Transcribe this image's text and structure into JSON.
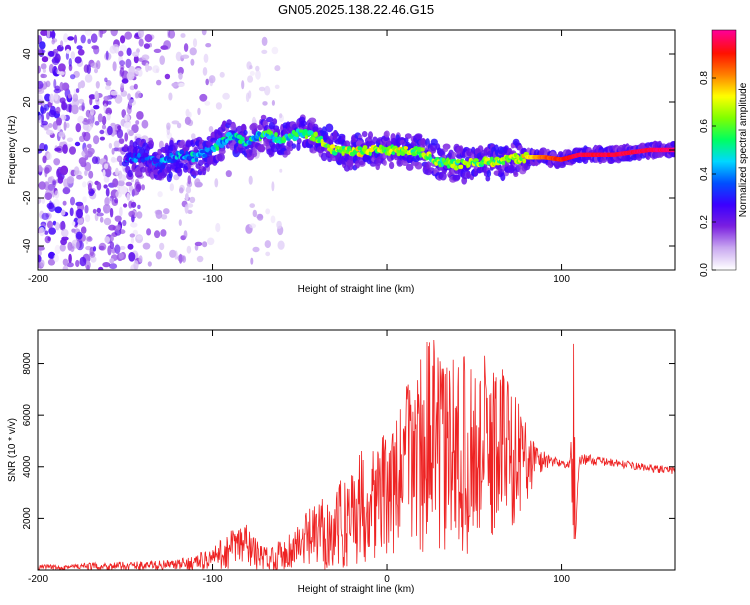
{
  "figure": {
    "title": "GN05.2025.138.22.46.G15"
  },
  "chart_data": [
    {
      "type": "heatmap",
      "title": "GN05.2025.138.22.46.G15",
      "xlabel": "Height of straight line (km)",
      "ylabel": "Frequency (Hz)",
      "xlim": [
        -200,
        165
      ],
      "ylim": [
        -50,
        50
      ],
      "x_ticks": [
        -200,
        -100,
        0,
        100
      ],
      "x_tick_labels": [
        "-200",
        "-100",
        "",
        "100"
      ],
      "y_ticks": [
        -40,
        -20,
        0,
        20,
        40
      ],
      "y_tick_labels": [
        "-40",
        "-20",
        "0",
        "20",
        "40"
      ],
      "colorbar": {
        "label": "Normalized spectral amplitude",
        "range": [
          0,
          1
        ],
        "ticks": [
          0,
          0.2,
          0.4,
          0.6,
          0.8
        ],
        "tick_labels": [
          "0.0",
          "0.2",
          "0.4",
          "0.6",
          "0.8"
        ],
        "colormap": [
          "#ffffff",
          "#c9a8f0",
          "#7a1fe0",
          "#3a00ff",
          "#0050ff",
          "#00d8ff",
          "#00ff60",
          "#80ff00",
          "#ffff00",
          "#ff8000",
          "#ff1000",
          "#ff0090"
        ]
      },
      "ridge": {
        "x": [
          -150,
          -140,
          -130,
          -120,
          -110,
          -100,
          -90,
          -80,
          -70,
          -60,
          -50,
          -40,
          -30,
          -20,
          -10,
          0,
          10,
          20,
          30,
          40,
          50,
          60,
          70,
          80,
          90,
          100,
          110,
          120,
          130,
          140,
          150,
          165
        ],
        "freq": [
          -4,
          -3,
          -6,
          -2,
          -3,
          0,
          6,
          3,
          7,
          4,
          7,
          5,
          0,
          -1,
          0,
          0,
          0,
          -1,
          -5,
          -6,
          -5,
          -5,
          -4,
          -3,
          -3,
          -4,
          -2,
          -2,
          -2,
          -1,
          0,
          0
        ],
        "amplitude": [
          0.3,
          0.32,
          0.35,
          0.38,
          0.4,
          0.45,
          0.48,
          0.45,
          0.5,
          0.5,
          0.55,
          0.6,
          0.62,
          0.65,
          0.68,
          0.62,
          0.65,
          0.6,
          0.6,
          0.58,
          0.62,
          0.62,
          0.65,
          0.72,
          0.85,
          0.9,
          0.95,
          0.95,
          0.95,
          0.95,
          0.96,
          0.98
        ]
      },
      "noise_region": {
        "x_range": [
          -200,
          -60
        ],
        "freq_range": [
          -50,
          50
        ],
        "amplitude_max": 0.2
      }
    },
    {
      "type": "line",
      "title": "",
      "xlabel": "Height of straight line (km)",
      "ylabel": "SNR (10 * v/v)",
      "xlim": [
        -200,
        165
      ],
      "ylim": [
        0,
        9300
      ],
      "x_ticks": [
        -200,
        -100,
        0,
        100
      ],
      "x_tick_labels": [
        "-200",
        "-100",
        "0",
        "100"
      ],
      "y_ticks": [
        2000,
        4000,
        6000,
        8000
      ],
      "y_tick_labels": [
        "2000",
        "4000",
        "6000",
        "8000"
      ],
      "line_color": "#ee2222",
      "envelope": {
        "x": [
          -200,
          -180,
          -160,
          -140,
          -120,
          -110,
          -100,
          -95,
          -90,
          -85,
          -80,
          -75,
          -70,
          -60,
          -50,
          -40,
          -30,
          -25,
          -20,
          -10,
          0,
          5,
          10,
          15,
          20,
          25,
          30,
          35,
          40,
          45,
          50,
          55,
          60,
          65,
          70,
          75,
          80,
          85,
          90,
          95,
          100,
          105,
          107,
          108,
          110,
          115,
          120,
          130,
          140,
          150,
          165
        ],
        "upper": [
          200,
          250,
          300,
          350,
          400,
          600,
          900,
          1200,
          1600,
          1800,
          2000,
          1200,
          900,
          1200,
          2000,
          2700,
          3200,
          3600,
          4400,
          5000,
          5400,
          5600,
          7500,
          8000,
          8600,
          9300,
          8400,
          8000,
          8700,
          8200,
          8000,
          8400,
          7900,
          8600,
          7600,
          6600,
          5900,
          5000,
          4700,
          4400,
          4300,
          4200,
          9000,
          1300,
          4500,
          4500,
          4400,
          4300,
          4200,
          4100,
          4000
        ],
        "lower": [
          0,
          0,
          0,
          0,
          0,
          0,
          0,
          0,
          0,
          0,
          0,
          0,
          0,
          0,
          0,
          0,
          0,
          0,
          100,
          300,
          500,
          500,
          600,
          700,
          600,
          500,
          500,
          500,
          400,
          600,
          700,
          800,
          900,
          1200,
          1500,
          2000,
          2600,
          3300,
          3800,
          4000,
          4000,
          3900,
          1200,
          1200,
          4000,
          4100,
          4050,
          4000,
          3900,
          3800,
          3700
        ]
      }
    }
  ]
}
